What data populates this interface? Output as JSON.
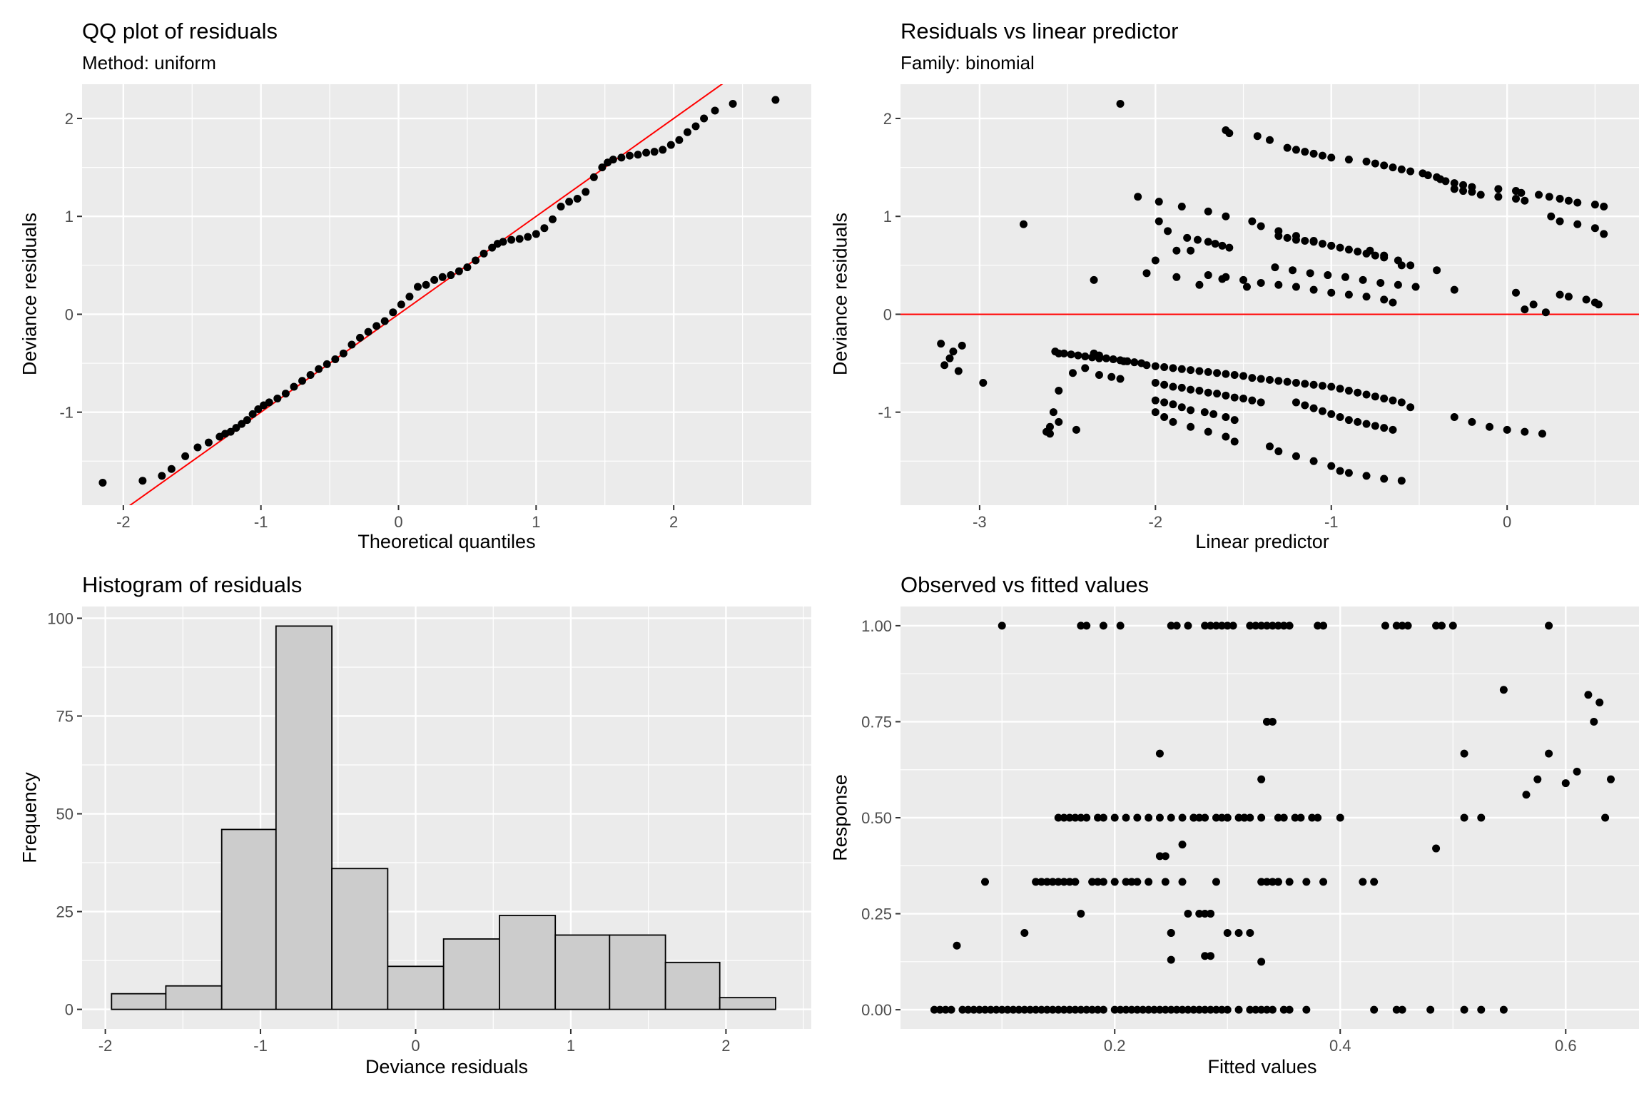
{
  "chart_data": [
    {
      "type": "scatter",
      "title": "QQ plot of residuals",
      "subtitle": "Method: uniform",
      "xlabel": "Theoretical quantiles",
      "ylabel": "Deviance residuals",
      "xlim": [
        -2.3,
        3.0
      ],
      "ylim": [
        -1.95,
        2.35
      ],
      "xticks": [
        -2,
        -1,
        0,
        1,
        2
      ],
      "yticks": [
        -1,
        0,
        1,
        2
      ],
      "reference_line": {
        "slope": 1,
        "intercept": 0,
        "color": "#FF0000"
      },
      "points": {
        "x": [
          -2.15,
          -1.86,
          -1.72,
          -1.65,
          -1.55,
          -1.46,
          -1.38,
          -1.3,
          -1.26,
          -1.22,
          -1.18,
          -1.14,
          -1.1,
          -1.06,
          -1.02,
          -0.98,
          -0.94,
          -0.88,
          -0.82,
          -0.76,
          -0.7,
          -0.64,
          -0.58,
          -0.52,
          -0.46,
          -0.4,
          -0.34,
          -0.28,
          -0.22,
          -0.16,
          -0.1,
          -0.04,
          0.02,
          0.08,
          0.14,
          0.2,
          0.26,
          0.32,
          0.38,
          0.44,
          0.5,
          0.56,
          0.62,
          0.68,
          0.72,
          0.76,
          0.82,
          0.88,
          0.94,
          1.0,
          1.06,
          1.12,
          1.18,
          1.24,
          1.3,
          1.36,
          1.42,
          1.48,
          1.52,
          1.56,
          1.62,
          1.68,
          1.74,
          1.8,
          1.86,
          1.92,
          1.98,
          2.04,
          2.1,
          2.16,
          2.22,
          2.3,
          2.43,
          2.74
        ],
        "y": [
          -1.72,
          -1.7,
          -1.65,
          -1.58,
          -1.45,
          -1.36,
          -1.31,
          -1.25,
          -1.22,
          -1.2,
          -1.16,
          -1.12,
          -1.08,
          -1.02,
          -0.97,
          -0.93,
          -0.9,
          -0.86,
          -0.81,
          -0.74,
          -0.68,
          -0.62,
          -0.56,
          -0.51,
          -0.46,
          -0.4,
          -0.31,
          -0.24,
          -0.18,
          -0.12,
          -0.07,
          0.02,
          0.1,
          0.18,
          0.28,
          0.3,
          0.35,
          0.38,
          0.4,
          0.44,
          0.48,
          0.55,
          0.62,
          0.68,
          0.72,
          0.74,
          0.76,
          0.77,
          0.79,
          0.82,
          0.88,
          0.97,
          1.1,
          1.15,
          1.18,
          1.25,
          1.4,
          1.5,
          1.55,
          1.58,
          1.6,
          1.62,
          1.63,
          1.65,
          1.66,
          1.68,
          1.73,
          1.78,
          1.86,
          1.92,
          2.0,
          2.08,
          2.15,
          2.19
        ]
      }
    },
    {
      "type": "scatter",
      "title": "Residuals vs linear predictor",
      "subtitle": "Family: binomial",
      "xlabel": "Linear predictor",
      "ylabel": "Deviance residuals",
      "xlim": [
        -3.45,
        0.75
      ],
      "ylim": [
        -1.95,
        2.35
      ],
      "xticks": [
        -3,
        -2,
        -1,
        0
      ],
      "yticks": [
        -1,
        0,
        1,
        2
      ],
      "reference_line": {
        "horizontal": 0,
        "color": "#FF0000"
      },
      "points": {
        "x": [
          -3.22,
          -3.2,
          -3.17,
          -3.15,
          -3.12,
          -3.1,
          -2.98,
          -2.75,
          -2.62,
          -2.6,
          -2.57,
          -2.55,
          -2.52,
          -2.48,
          -2.44,
          -2.4,
          -2.36,
          -2.32,
          -2.28,
          -2.24,
          -2.2,
          -2.16,
          -2.12,
          -2.08,
          -2.58,
          -2.55,
          -2.47,
          -2.4,
          -2.32,
          -2.25,
          -2.2,
          -2.55,
          -2.6,
          -2.45,
          -2.35,
          -2.32,
          -2.18,
          -2.05,
          -2.0,
          -1.95,
          -1.9,
          -1.85,
          -1.8,
          -1.75,
          -1.7,
          -1.65,
          -1.6,
          -1.55,
          -1.5,
          -1.45,
          -1.4,
          -1.35,
          -1.3,
          -1.25,
          -1.2,
          -1.15,
          -1.1,
          -1.05,
          -1.0,
          -0.95,
          -0.9,
          -0.85,
          -0.8,
          -0.75,
          -0.7,
          -0.65,
          -0.6,
          -0.55,
          -2.0,
          -1.95,
          -1.9,
          -1.85,
          -1.8,
          -1.75,
          -1.7,
          -1.65,
          -1.6,
          -1.55,
          -1.5,
          -1.45,
          -1.4,
          -2.0,
          -1.95,
          -1.9,
          -1.85,
          -1.8,
          -1.72,
          -1.67,
          -1.6,
          -1.55,
          -1.2,
          -1.15,
          -1.1,
          -1.05,
          -1.0,
          -0.95,
          -0.9,
          -0.85,
          -0.8,
          -0.75,
          -0.7,
          -0.65,
          -2.0,
          -1.95,
          -1.9,
          -1.8,
          -1.7,
          -1.6,
          -1.55,
          -1.35,
          -1.3,
          -1.2,
          -1.1,
          -1.0,
          -0.95,
          -0.9,
          -0.8,
          -0.7,
          -0.6,
          -0.3,
          -0.2,
          -0.1,
          0.0,
          0.1,
          0.2,
          -1.98,
          -1.93,
          -1.88,
          -1.82,
          -1.76,
          -1.7,
          -1.66,
          -1.62,
          -1.58,
          -1.3,
          -1.25,
          -1.2,
          -1.15,
          -1.1,
          -1.05,
          -1.0,
          -0.95,
          -0.9,
          -0.85,
          -0.8,
          -0.75,
          -0.7,
          -0.6,
          -0.3,
          -0.25,
          -0.2,
          -0.15,
          -0.05,
          0.05,
          0.1,
          0.25,
          0.3,
          0.4,
          0.5,
          0.55,
          -2.2,
          -1.6,
          -1.58,
          -1.42,
          -1.35,
          -1.25,
          -1.2,
          -1.15,
          -1.1,
          -1.05,
          -1.0,
          -0.9,
          -0.8,
          -0.75,
          -0.7,
          -0.65,
          -0.6,
          -0.55,
          -0.48,
          -0.45,
          -0.4,
          -0.38,
          -0.35,
          -0.3,
          -0.25,
          -0.2,
          -0.05,
          0.05,
          0.08,
          0.18,
          0.24,
          0.3,
          0.35,
          0.4,
          0.5,
          0.55,
          -2.0,
          -1.8,
          -1.7,
          -1.6,
          -1.5,
          -1.4,
          -1.3,
          -1.2,
          -1.1,
          -1.0,
          -0.9,
          -0.8,
          -0.7,
          -0.65,
          -2.35,
          -2.05,
          -1.88,
          -1.75,
          -1.62,
          -1.48,
          -1.32,
          -1.22,
          -1.12,
          -1.02,
          -0.92,
          -0.82,
          -0.72,
          -0.62,
          -0.52,
          -0.3,
          0.05,
          0.3,
          0.35,
          0.45,
          0.5,
          0.52,
          -2.1,
          -1.98,
          -1.85,
          -1.7,
          -1.6,
          -1.45,
          -1.4,
          -1.3,
          -1.2,
          -1.1,
          -1.0,
          -0.78,
          -0.7,
          -0.62,
          -0.55,
          -0.4,
          0.1,
          0.15,
          0.22
        ],
        "y": [
          -0.3,
          -0.52,
          -0.45,
          -0.38,
          -0.58,
          -0.32,
          -0.7,
          0.92,
          -1.2,
          -1.15,
          -0.38,
          -0.4,
          -0.4,
          -0.41,
          -0.42,
          -0.43,
          -0.44,
          -0.45,
          -0.45,
          -0.46,
          -0.47,
          -0.48,
          -0.49,
          -0.5,
          -1.0,
          -0.78,
          -0.6,
          -0.55,
          -0.62,
          -0.64,
          -0.66,
          -1.1,
          -1.22,
          -1.18,
          -0.4,
          -0.42,
          -0.48,
          -0.52,
          -0.53,
          -0.54,
          -0.55,
          -0.56,
          -0.57,
          -0.58,
          -0.59,
          -0.6,
          -0.61,
          -0.62,
          -0.63,
          -0.65,
          -0.66,
          -0.67,
          -0.68,
          -0.69,
          -0.7,
          -0.71,
          -0.72,
          -0.73,
          -0.74,
          -0.76,
          -0.78,
          -0.8,
          -0.82,
          -0.84,
          -0.86,
          -0.88,
          -0.9,
          -0.95,
          -0.7,
          -0.72,
          -0.74,
          -0.75,
          -0.77,
          -0.78,
          -0.8,
          -0.81,
          -0.83,
          -0.85,
          -0.86,
          -0.88,
          -0.9,
          -0.88,
          -0.9,
          -0.92,
          -0.95,
          -0.98,
          -1.0,
          -1.02,
          -1.05,
          -1.08,
          -0.9,
          -0.93,
          -0.96,
          -0.99,
          -1.02,
          -1.05,
          -1.08,
          -1.1,
          -1.12,
          -1.14,
          -1.16,
          -1.18,
          -1.0,
          -1.05,
          -1.1,
          -1.15,
          -1.2,
          -1.25,
          -1.3,
          -1.35,
          -1.4,
          -1.45,
          -1.5,
          -1.55,
          -1.6,
          -1.62,
          -1.65,
          -1.68,
          -1.7,
          -1.05,
          -1.1,
          -1.15,
          -1.18,
          -1.2,
          -1.22,
          0.95,
          0.85,
          0.65,
          0.78,
          0.76,
          0.74,
          0.72,
          0.7,
          0.68,
          0.8,
          0.78,
          0.76,
          0.75,
          0.74,
          0.72,
          0.7,
          0.68,
          0.66,
          0.64,
          0.62,
          0.6,
          0.58,
          0.5,
          1.28,
          1.26,
          1.25,
          1.22,
          1.2,
          1.18,
          1.16,
          1.0,
          0.95,
          0.92,
          0.88,
          0.82,
          2.15,
          1.88,
          1.85,
          1.82,
          1.78,
          1.7,
          1.68,
          1.66,
          1.64,
          1.62,
          1.6,
          1.58,
          1.56,
          1.54,
          1.52,
          1.5,
          1.48,
          1.46,
          1.44,
          1.42,
          1.4,
          1.38,
          1.36,
          1.34,
          1.32,
          1.3,
          1.28,
          1.26,
          1.24,
          1.22,
          1.2,
          1.18,
          1.16,
          1.14,
          1.12,
          1.1,
          0.55,
          0.65,
          0.4,
          0.38,
          0.35,
          0.32,
          0.3,
          0.28,
          0.25,
          0.22,
          0.2,
          0.18,
          0.15,
          0.12,
          0.35,
          0.42,
          0.38,
          0.3,
          0.36,
          0.28,
          0.48,
          0.45,
          0.42,
          0.4,
          0.38,
          0.35,
          0.32,
          0.3,
          0.28,
          0.25,
          0.22,
          0.2,
          0.18,
          0.15,
          0.12,
          0.1,
          1.2,
          1.15,
          1.1,
          1.05,
          1.0,
          0.95,
          0.9,
          0.85,
          0.8,
          0.75,
          0.7,
          0.65,
          0.6,
          0.55,
          0.5,
          0.45,
          0.05,
          0.1,
          0.02
        ]
      }
    },
    {
      "type": "bar",
      "title": "Histogram of residuals",
      "xlabel": "Deviance residuals",
      "ylabel": "Frequency",
      "xlim": [
        -2.15,
        2.55
      ],
      "ylim": [
        -5,
        103
      ],
      "xticks": [
        -2,
        -1,
        0,
        1,
        2
      ],
      "yticks": [
        0,
        25,
        50,
        75,
        100
      ],
      "bin_edges": [
        -1.96,
        -1.61,
        -1.25,
        -0.9,
        -0.54,
        -0.18,
        0.18,
        0.54,
        0.9,
        1.25,
        1.61,
        1.96,
        2.32
      ],
      "values": [
        4,
        6,
        46,
        98,
        36,
        11,
        18,
        24,
        19,
        19,
        12,
        3
      ]
    },
    {
      "type": "scatter",
      "title": "Observed vs fitted values",
      "xlabel": "Fitted values",
      "ylabel": "Response",
      "xlim": [
        0.01,
        0.665
      ],
      "ylim": [
        -0.05,
        1.05
      ],
      "xticks": [
        0.2,
        0.4,
        0.6
      ],
      "xtick_labels": [
        "0.2",
        "0.4",
        "0.6"
      ],
      "yticks": [
        0,
        0.25,
        0.5,
        0.75,
        1
      ],
      "ytick_labels": [
        "0.00",
        "0.25",
        "0.50",
        "0.75",
        "1.00"
      ],
      "points": {
        "x": [
          0.04,
          0.045,
          0.05,
          0.055,
          0.065,
          0.07,
          0.075,
          0.08,
          0.085,
          0.09,
          0.095,
          0.1,
          0.105,
          0.11,
          0.115,
          0.12,
          0.125,
          0.13,
          0.135,
          0.14,
          0.145,
          0.15,
          0.155,
          0.16,
          0.165,
          0.17,
          0.175,
          0.18,
          0.185,
          0.19,
          0.2,
          0.205,
          0.21,
          0.215,
          0.22,
          0.225,
          0.23,
          0.235,
          0.24,
          0.245,
          0.25,
          0.255,
          0.26,
          0.265,
          0.27,
          0.275,
          0.28,
          0.285,
          0.29,
          0.295,
          0.3,
          0.31,
          0.32,
          0.325,
          0.33,
          0.335,
          0.34,
          0.35,
          0.355,
          0.37,
          0.43,
          0.45,
          0.455,
          0.48,
          0.51,
          0.525,
          0.545,
          0.1,
          0.17,
          0.175,
          0.19,
          0.205,
          0.25,
          0.255,
          0.265,
          0.28,
          0.285,
          0.29,
          0.295,
          0.3,
          0.305,
          0.32,
          0.325,
          0.33,
          0.335,
          0.34,
          0.345,
          0.35,
          0.355,
          0.38,
          0.385,
          0.44,
          0.45,
          0.455,
          0.46,
          0.485,
          0.49,
          0.5,
          0.585,
          0.06,
          0.085,
          0.12,
          0.13,
          0.135,
          0.14,
          0.145,
          0.15,
          0.155,
          0.16,
          0.165,
          0.17,
          0.18,
          0.185,
          0.19,
          0.2,
          0.21,
          0.215,
          0.22,
          0.23,
          0.24,
          0.245,
          0.25,
          0.26,
          0.265,
          0.275,
          0.285,
          0.29,
          0.3,
          0.31,
          0.32,
          0.33,
          0.335,
          0.34,
          0.345,
          0.355,
          0.37,
          0.385,
          0.42,
          0.43,
          0.15,
          0.155,
          0.16,
          0.165,
          0.17,
          0.175,
          0.185,
          0.19,
          0.2,
          0.21,
          0.22,
          0.23,
          0.24,
          0.25,
          0.26,
          0.27,
          0.275,
          0.28,
          0.29,
          0.3,
          0.31,
          0.315,
          0.32,
          0.33,
          0.345,
          0.35,
          0.36,
          0.365,
          0.375,
          0.38,
          0.4,
          0.24,
          0.245,
          0.25,
          0.26,
          0.27,
          0.28,
          0.285,
          0.295,
          0.3,
          0.315,
          0.33,
          0.335,
          0.34,
          0.51,
          0.525,
          0.545,
          0.565,
          0.575,
          0.585,
          0.6,
          0.61,
          0.62,
          0.625,
          0.63,
          0.635,
          0.64,
          0.335,
          0.345,
          0.33,
          0.485,
          0.51,
          0.28,
          0.285,
          0.25
        ],
        "y": [
          0,
          0,
          0,
          0,
          0,
          0,
          0,
          0,
          0,
          0,
          0,
          0,
          0,
          0,
          0,
          0,
          0,
          0,
          0,
          0,
          0,
          0,
          0,
          0,
          0,
          0,
          0,
          0,
          0,
          0,
          0,
          0,
          0,
          0,
          0,
          0,
          0,
          0,
          0,
          0,
          0,
          0,
          0,
          0,
          0,
          0,
          0,
          0,
          0,
          0,
          0,
          0,
          0,
          0,
          0,
          0,
          0,
          0,
          0,
          0,
          0,
          0,
          0,
          0,
          0,
          0,
          0,
          1,
          1,
          1,
          1,
          1,
          1,
          1,
          1,
          1,
          1,
          1,
          1,
          1,
          1,
          1,
          1,
          1,
          1,
          1,
          1,
          1,
          1,
          1,
          1,
          1,
          1,
          1,
          1,
          1,
          1,
          1,
          1,
          0.167,
          0.333,
          0.2,
          0.333,
          0.333,
          0.333,
          0.333,
          0.333,
          0.333,
          0.333,
          0.333,
          0.25,
          0.333,
          0.333,
          0.333,
          0.333,
          0.333,
          0.333,
          0.333,
          0.333,
          0.4,
          0.333,
          0.2,
          0.333,
          0.25,
          0.25,
          0.25,
          0.333,
          0.2,
          0.2,
          0.2,
          0.333,
          0.333,
          0.333,
          0.333,
          0.333,
          0.333,
          0.333,
          0.333,
          0.333,
          0.5,
          0.5,
          0.5,
          0.5,
          0.5,
          0.5,
          0.5,
          0.5,
          0.5,
          0.5,
          0.5,
          0.5,
          0.5,
          0.5,
          0.5,
          0.5,
          0.5,
          0.5,
          0.5,
          0.5,
          0.5,
          0.5,
          0.5,
          0.5,
          0.5,
          0.5,
          0.5,
          0.5,
          0.5,
          0.5,
          0.5,
          0.667,
          0.4,
          0.2,
          0.43,
          0.5,
          0.25,
          0.25,
          0.5,
          0.5,
          0.5,
          0.6,
          0.75,
          0.75,
          0.667,
          0.5,
          0.833,
          0.56,
          0.6,
          0.667,
          0.59,
          0.62,
          0.82,
          0.75,
          0.8,
          0.5,
          0.6,
          0.75,
          0.333,
          0.125,
          0.42,
          0.5,
          0.14,
          0.14,
          0.13
        ]
      }
    }
  ]
}
